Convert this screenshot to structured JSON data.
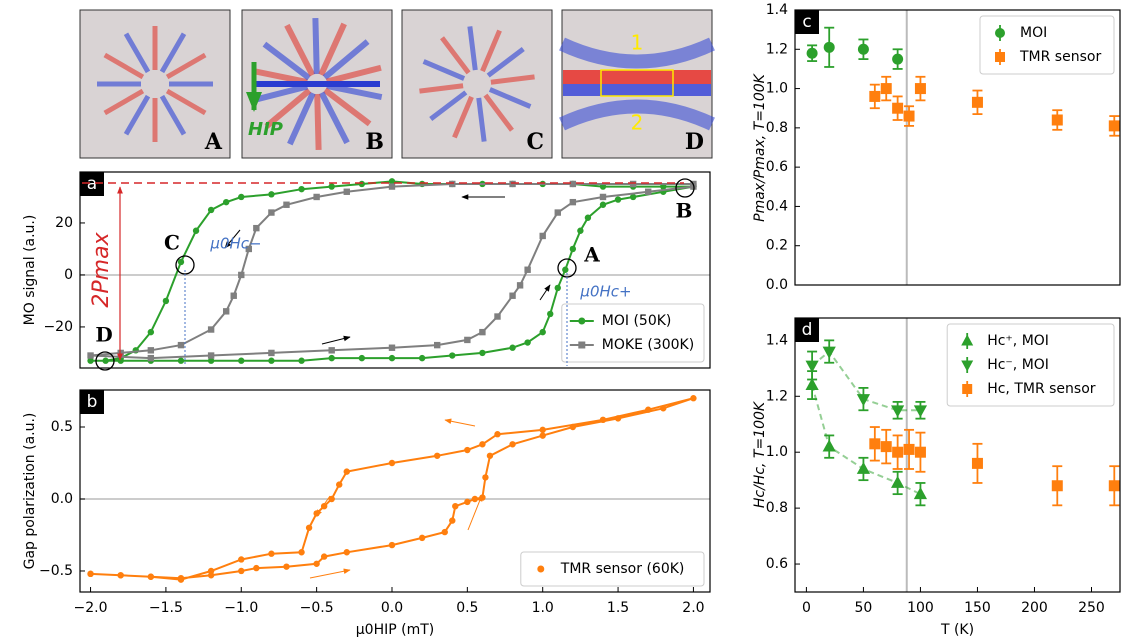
{
  "images": [
    {
      "label": "A"
    },
    {
      "label": "B",
      "field": "HIP"
    },
    {
      "label": "C"
    },
    {
      "label": "D",
      "regions": [
        "1",
        "2"
      ]
    }
  ],
  "chart_data": [
    {
      "type": "line",
      "panel": "a",
      "ylabel": "MO signal (a.u.)",
      "xlim": [
        -2.07,
        2.11
      ],
      "ylim": [
        -35.8,
        39.6
      ],
      "yticks": [
        {
          "value": -20,
          "label": "−20"
        },
        0,
        20
      ],
      "hline": 0,
      "legend": "lower right",
      "annotations": [
        "C",
        "B",
        "A",
        "D",
        "2Pmax",
        "μ0Hc−",
        "μ0Hc+"
      ],
      "series": [
        {
          "name": "MOI (50K)",
          "color": "#2ca02c",
          "marker": "circle",
          "x": [
            2.0,
            1.8,
            1.6,
            1.4,
            1.2,
            1.0,
            0.8,
            0.6,
            0.4,
            0.2,
            0.0,
            -0.2,
            -0.4,
            -0.6,
            -0.8,
            -1.0,
            -1.1,
            -1.2,
            -1.3,
            -1.4,
            -1.5,
            -1.6,
            -1.7,
            -1.8,
            -1.9,
            -2.0,
            -1.8,
            -1.6,
            -1.4,
            -1.2,
            -1.0,
            -0.8,
            -0.6,
            -0.4,
            -0.2,
            0.0,
            0.2,
            0.4,
            0.6,
            0.8,
            0.9,
            1.0,
            1.05,
            1.1,
            1.15,
            1.2,
            1.25,
            1.3,
            1.4,
            1.5,
            1.6,
            1.8,
            2.0
          ],
          "values": [
            34,
            34,
            34,
            34,
            35,
            35,
            35,
            35,
            35,
            35,
            36,
            35,
            34,
            33,
            31,
            30,
            28,
            25,
            17,
            5,
            -10,
            -22,
            -29,
            -32,
            -33,
            -33,
            -33,
            -33,
            -33,
            -33,
            -33,
            -33,
            -33,
            -32,
            -32,
            -32,
            -32,
            -31,
            -30,
            -28,
            -26,
            -22,
            -15,
            -5,
            2,
            10,
            17,
            22,
            27,
            29,
            30,
            32,
            34
          ]
        },
        {
          "name": "MOKE (300K)",
          "color": "#7f7f7f",
          "marker": "square",
          "x": [
            2.0,
            1.6,
            1.2,
            0.8,
            0.4,
            0.0,
            -0.3,
            -0.5,
            -0.7,
            -0.8,
            -0.9,
            -0.95,
            -1.0,
            -1.05,
            -1.1,
            -1.2,
            -1.4,
            -1.6,
            -1.8,
            -2.0,
            -1.6,
            -1.2,
            -0.8,
            -0.4,
            0.0,
            0.3,
            0.5,
            0.6,
            0.7,
            0.8,
            0.85,
            0.9,
            1.0,
            1.1,
            1.2,
            1.4,
            1.7,
            2.0
          ],
          "values": [
            35,
            35,
            35,
            35,
            35,
            34,
            32,
            30,
            27,
            24,
            18,
            10,
            0,
            -8,
            -14,
            -21,
            -27,
            -29,
            -30,
            -31,
            -32,
            -31,
            -30,
            -29,
            -28,
            -27,
            -25,
            -22,
            -16,
            -8,
            -4,
            2,
            15,
            24,
            28,
            30,
            32,
            34
          ]
        }
      ]
    },
    {
      "type": "line",
      "panel": "b",
      "ylabel": "Gap polarization (a.u.)",
      "xlabel": "μ0HIP (mT)",
      "xlim": [
        -2.07,
        2.11
      ],
      "ylim": [
        -0.646,
        0.757
      ],
      "xticks": [
        {
          "value": -2,
          "label": "−2.0"
        },
        {
          "value": -1.5,
          "label": "−1.5"
        },
        {
          "value": -1,
          "label": "−1.0"
        },
        {
          "value": -0.5,
          "label": "−0.5"
        },
        {
          "value": 0,
          "label": "0.0"
        },
        0.5,
        {
          "value": 1,
          "label": "1.0"
        },
        1.5,
        {
          "value": 2,
          "label": "2.0"
        }
      ],
      "yticks": [
        {
          "value": -0.5,
          "label": "−0.5"
        },
        {
          "value": 0,
          "label": "0.0"
        },
        0.5
      ],
      "hline": 0,
      "legend": "lower right",
      "series": [
        {
          "name": "TMR sensor (60K)",
          "color": "#ff7f0e",
          "marker": "circle",
          "x": [
            -2.0,
            -1.8,
            -1.6,
            -1.4,
            -1.2,
            -1.0,
            -0.9,
            -0.7,
            -0.5,
            -0.45,
            -0.3,
            0.0,
            0.2,
            0.35,
            0.4,
            0.42,
            0.5,
            0.55,
            0.6,
            0.62,
            0.65,
            0.8,
            1.0,
            1.2,
            1.5,
            1.8,
            2.0,
            1.7,
            1.4,
            1.0,
            0.7,
            0.6,
            0.5,
            0.3,
            0.0,
            -0.3,
            -0.35,
            -0.4,
            -0.45,
            -0.5,
            -0.55,
            -0.6,
            -0.8,
            -1.0,
            -1.2,
            -1.4,
            -1.6,
            -1.8,
            -2.0
          ],
          "values": [
            -0.52,
            -0.53,
            -0.54,
            -0.55,
            -0.53,
            -0.5,
            -0.48,
            -0.47,
            -0.45,
            -0.4,
            -0.37,
            -0.32,
            -0.27,
            -0.23,
            -0.15,
            -0.05,
            -0.02,
            0.0,
            0.01,
            0.15,
            0.3,
            0.38,
            0.44,
            0.5,
            0.56,
            0.63,
            0.7,
            0.62,
            0.55,
            0.48,
            0.45,
            0.38,
            0.34,
            0.3,
            0.25,
            0.19,
            0.1,
            0.0,
            -0.05,
            -0.1,
            -0.2,
            -0.37,
            -0.38,
            -0.42,
            -0.5,
            -0.56,
            -0.54,
            -0.53,
            -0.52
          ]
        }
      ]
    },
    {
      "type": "errorbar",
      "panel": "c",
      "ylabel": "Pmax/Pmax, T=100K",
      "xlim": [
        -10,
        275
      ],
      "ylim": [
        0,
        1.4
      ],
      "yticks": [
        {
          "value": 0,
          "label": "0.0"
        },
        0.2,
        0.4,
        0.6,
        0.8,
        {
          "value": 1,
          "label": "1.0"
        },
        1.2,
        1.4
      ],
      "vline": 88,
      "legend": "upper right",
      "series": [
        {
          "name": "MOI",
          "color": "#2ca02c",
          "marker": "circle",
          "x": [
            5,
            20,
            50,
            80
          ],
          "values": [
            1.18,
            1.21,
            1.2,
            1.15
          ],
          "errors": [
            0.04,
            0.1,
            0.05,
            0.05
          ]
        },
        {
          "name": "TMR sensor",
          "color": "#ff7f0e",
          "marker": "square",
          "x": [
            60,
            70,
            80,
            90,
            100,
            150,
            220,
            270
          ],
          "values": [
            0.96,
            1.0,
            0.9,
            0.86,
            1.0,
            0.93,
            0.84,
            0.81
          ],
          "errors": [
            0.06,
            0.06,
            0.06,
            0.05,
            0.06,
            0.06,
            0.05,
            0.05
          ]
        }
      ]
    },
    {
      "type": "errorbar",
      "panel": "d",
      "ylabel": "Hc/Hc, T=100K",
      "xlabel": "T (K)",
      "xlim": [
        -10,
        275
      ],
      "ylim": [
        0.5,
        1.48
      ],
      "xticks": [
        0,
        50,
        100,
        150,
        200,
        250
      ],
      "yticks": [
        0.6,
        0.8,
        {
          "value": 1,
          "label": "1.0"
        },
        1.2,
        1.4
      ],
      "vline": 88,
      "legend": "upper right",
      "series": [
        {
          "name": "Hc⁺, MOI",
          "color": "#2ca02c",
          "marker": "triangle-up",
          "linestyle": "dashed",
          "x": [
            5,
            20,
            50,
            80,
            100
          ],
          "values": [
            1.24,
            1.02,
            0.94,
            0.89,
            0.85
          ],
          "errors": [
            0.05,
            0.04,
            0.04,
            0.04,
            0.04
          ]
        },
        {
          "name": "Hc⁻, MOI",
          "color": "#2ca02c",
          "marker": "triangle-down",
          "linestyle": "dashed",
          "x": [
            5,
            20,
            50,
            80,
            100
          ],
          "values": [
            1.31,
            1.36,
            1.19,
            1.15,
            1.15
          ],
          "errors": [
            0.05,
            0.04,
            0.04,
            0.03,
            0.03
          ]
        },
        {
          "name": "Hc, TMR sensor",
          "color": "#ff7f0e",
          "marker": "square",
          "x": [
            60,
            70,
            80,
            90,
            100,
            150,
            220,
            270
          ],
          "values": [
            1.03,
            1.02,
            1.0,
            1.01,
            1.0,
            0.96,
            0.88,
            0.88
          ],
          "errors": [
            0.06,
            0.06,
            0.06,
            0.07,
            0.07,
            0.07,
            0.07,
            0.07
          ]
        }
      ]
    }
  ]
}
